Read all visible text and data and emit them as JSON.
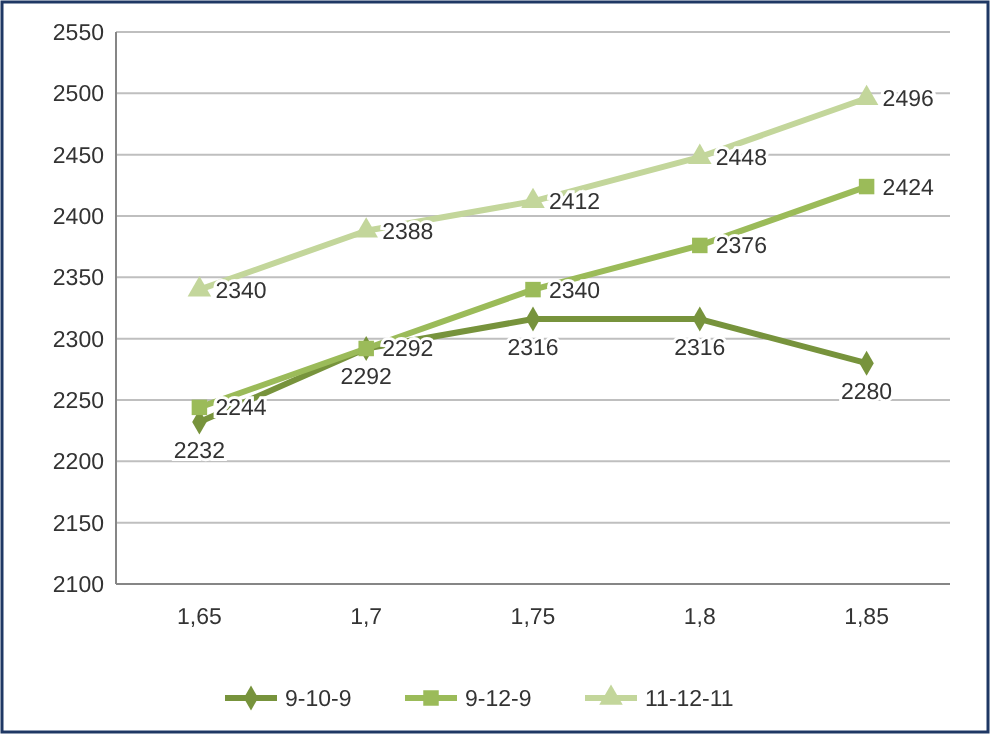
{
  "chart_data": {
    "type": "line",
    "categories": [
      "1,65",
      "1,7",
      "1,75",
      "1,8",
      "1,85"
    ],
    "series": [
      {
        "name": "9-10-9",
        "color": "#77933c",
        "marker": "diamond",
        "values": [
          2232,
          2292,
          2316,
          2316,
          2280
        ]
      },
      {
        "name": "9-12-9",
        "color": "#9bbb59",
        "marker": "square",
        "values": [
          2244,
          2292,
          2340,
          2376,
          2424
        ]
      },
      {
        "name": "11-12-11",
        "color": "#c3d69b",
        "marker": "triangle",
        "values": [
          2340,
          2388,
          2412,
          2448,
          2496
        ]
      }
    ],
    "ylim": [
      2100,
      2550
    ],
    "yticks": [
      2100,
      2150,
      2200,
      2250,
      2300,
      2350,
      2400,
      2450,
      2500,
      2550
    ],
    "grid": "y",
    "legend": "bottom",
    "data_labels": true,
    "line_style": "solid"
  }
}
